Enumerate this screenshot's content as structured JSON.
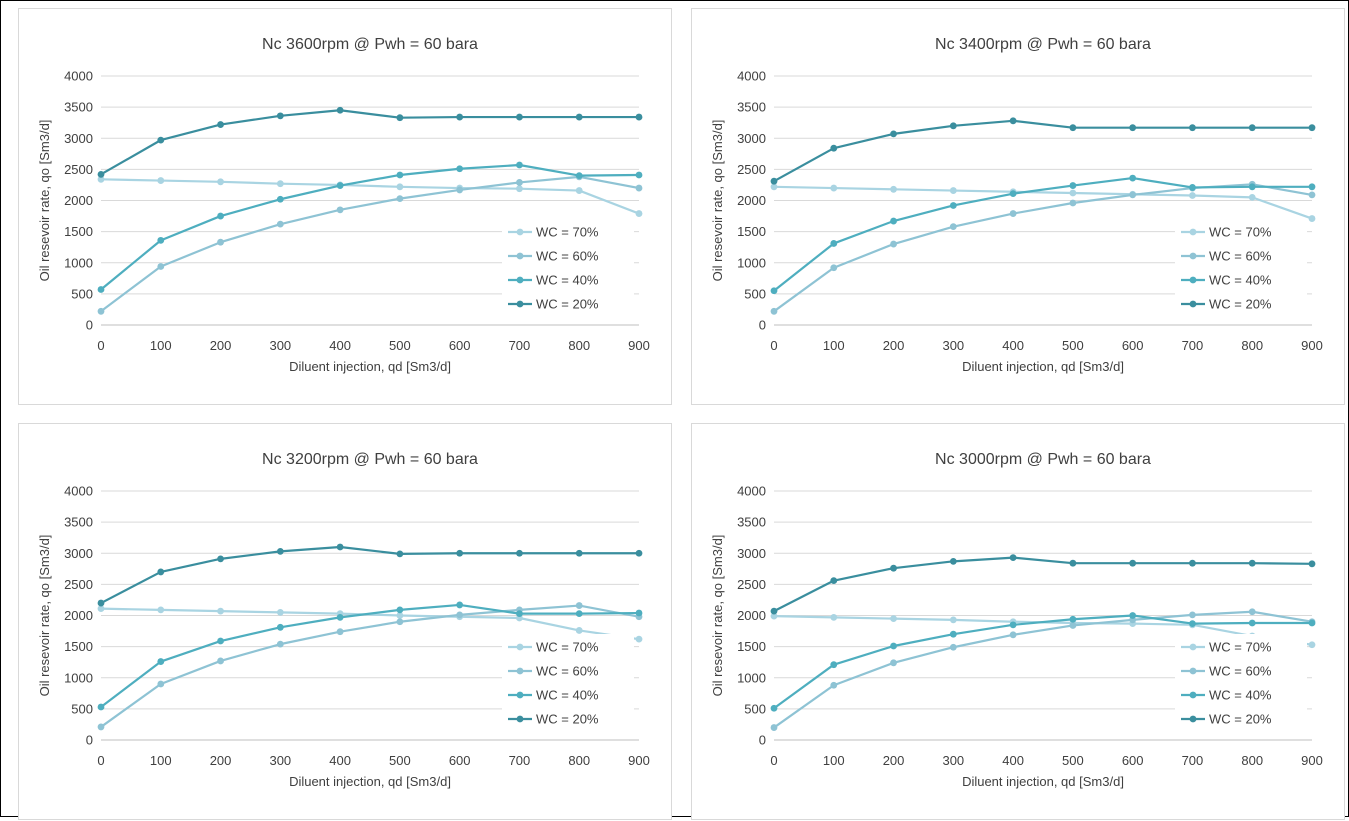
{
  "chart_data": [
    {
      "type": "line",
      "title": "Nc 3600rpm @ Pwh = 60 bara",
      "xlabel": "Diluent injection, qd [Sm3/d]",
      "ylabel": "Oil resevoir rate, qo [Sm3/d]",
      "xlim": [
        0,
        900
      ],
      "ylim": [
        0,
        4000
      ],
      "x": [
        0,
        100,
        200,
        300,
        400,
        500,
        600,
        700,
        800,
        900
      ],
      "x_ticks": [
        "0",
        "100",
        "200",
        "300",
        "400",
        "500",
        "600",
        "700",
        "800",
        "900"
      ],
      "y_ticks": [
        "0",
        "500",
        "1000",
        "1500",
        "2000",
        "2500",
        "3000",
        "3500",
        "4000"
      ],
      "grid": true,
      "legend_position": "bottom-right",
      "series": [
        {
          "name": "WC = 70%",
          "color": "#a9d4e2",
          "values": [
            2340,
            2320,
            2300,
            2270,
            2250,
            2220,
            2200,
            2190,
            2160,
            1790
          ]
        },
        {
          "name": "WC = 60%",
          "color": "#8ec3d4",
          "values": [
            220,
            940,
            1330,
            1620,
            1850,
            2030,
            2170,
            2290,
            2380,
            2200
          ]
        },
        {
          "name": "WC = 40%",
          "color": "#4eaebf",
          "values": [
            570,
            1360,
            1750,
            2020,
            2240,
            2410,
            2510,
            2570,
            2400,
            2410
          ]
        },
        {
          "name": "WC = 20%",
          "color": "#3a8e9e",
          "values": [
            2420,
            2970,
            3220,
            3360,
            3450,
            3330,
            3340,
            3340,
            3340,
            3340
          ]
        }
      ]
    },
    {
      "type": "line",
      "title": "Nc 3400rpm @ Pwh = 60 bara",
      "xlabel": "Diluent injection, qd [Sm3/d]",
      "ylabel": "Oil resevoir rate, qo [Sm3/d]",
      "xlim": [
        0,
        900
      ],
      "ylim": [
        0,
        4000
      ],
      "x": [
        0,
        100,
        200,
        300,
        400,
        500,
        600,
        700,
        800,
        900
      ],
      "x_ticks": [
        "0",
        "100",
        "200",
        "300",
        "400",
        "500",
        "600",
        "700",
        "800",
        "900"
      ],
      "y_ticks": [
        "0",
        "500",
        "1000",
        "1500",
        "2000",
        "2500",
        "3000",
        "3500",
        "4000"
      ],
      "grid": true,
      "legend_position": "bottom-right",
      "series": [
        {
          "name": "WC = 70%",
          "color": "#a9d4e2",
          "values": [
            2220,
            2200,
            2180,
            2160,
            2140,
            2120,
            2100,
            2080,
            2050,
            1710
          ]
        },
        {
          "name": "WC = 60%",
          "color": "#8ec3d4",
          "values": [
            220,
            920,
            1300,
            1580,
            1790,
            1960,
            2090,
            2200,
            2260,
            2090
          ]
        },
        {
          "name": "WC = 40%",
          "color": "#4eaebf",
          "values": [
            550,
            1310,
            1670,
            1920,
            2110,
            2240,
            2360,
            2210,
            2220,
            2220
          ]
        },
        {
          "name": "WC = 20%",
          "color": "#3a8e9e",
          "values": [
            2310,
            2840,
            3070,
            3200,
            3280,
            3170,
            3170,
            3170,
            3170,
            3170
          ]
        }
      ]
    },
    {
      "type": "line",
      "title": "Nc 3200rpm @ Pwh = 60 bara",
      "xlabel": "Diluent injection, qd [Sm3/d]",
      "ylabel": "Oil resevoir rate, qo [Sm3/d]",
      "xlim": [
        0,
        900
      ],
      "ylim": [
        0,
        4000
      ],
      "x": [
        0,
        100,
        200,
        300,
        400,
        500,
        600,
        700,
        800,
        900
      ],
      "x_ticks": [
        "0",
        "100",
        "200",
        "300",
        "400",
        "500",
        "600",
        "700",
        "800",
        "900"
      ],
      "y_ticks": [
        "0",
        "500",
        "1000",
        "1500",
        "2000",
        "2500",
        "3000",
        "3500",
        "4000"
      ],
      "grid": true,
      "legend_position": "bottom-right",
      "series": [
        {
          "name": "WC = 70%",
          "color": "#a9d4e2",
          "values": [
            2110,
            2090,
            2070,
            2050,
            2030,
            2000,
            1980,
            1960,
            1760,
            1620
          ]
        },
        {
          "name": "WC = 60%",
          "color": "#8ec3d4",
          "values": [
            210,
            900,
            1270,
            1540,
            1740,
            1900,
            2010,
            2090,
            2160,
            1980
          ]
        },
        {
          "name": "WC = 40%",
          "color": "#4eaebf",
          "values": [
            530,
            1260,
            1590,
            1810,
            1970,
            2090,
            2170,
            2030,
            2030,
            2040
          ]
        },
        {
          "name": "WC = 20%",
          "color": "#3a8e9e",
          "values": [
            2200,
            2700,
            2910,
            3030,
            3100,
            2990,
            3000,
            3000,
            3000,
            3000
          ]
        }
      ]
    },
    {
      "type": "line",
      "title": "Nc 3000rpm @ Pwh = 60 bara",
      "xlabel": "Diluent injection, qd [Sm3/d]",
      "ylabel": "Oil resevoir rate, qo [Sm3/d]",
      "xlim": [
        0,
        900
      ],
      "ylim": [
        0,
        4000
      ],
      "x": [
        0,
        100,
        200,
        300,
        400,
        500,
        600,
        700,
        800,
        900
      ],
      "x_ticks": [
        "0",
        "100",
        "200",
        "300",
        "400",
        "500",
        "600",
        "700",
        "800",
        "900"
      ],
      "y_ticks": [
        "0",
        "500",
        "1000",
        "1500",
        "2000",
        "2500",
        "3000",
        "3500",
        "4000"
      ],
      "grid": true,
      "legend_position": "bottom-right",
      "series": [
        {
          "name": "WC = 70%",
          "color": "#a9d4e2",
          "values": [
            1990,
            1970,
            1950,
            1930,
            1900,
            1880,
            1870,
            1850,
            1670,
            1530
          ]
        },
        {
          "name": "WC = 60%",
          "color": "#8ec3d4",
          "values": [
            200,
            880,
            1240,
            1490,
            1690,
            1840,
            1930,
            2010,
            2060,
            1900
          ]
        },
        {
          "name": "WC = 40%",
          "color": "#4eaebf",
          "values": [
            510,
            1210,
            1510,
            1700,
            1850,
            1940,
            2000,
            1870,
            1880,
            1880
          ]
        },
        {
          "name": "WC = 20%",
          "color": "#3a8e9e",
          "values": [
            2070,
            2560,
            2760,
            2870,
            2930,
            2840,
            2840,
            2840,
            2840,
            2830
          ]
        }
      ]
    }
  ]
}
